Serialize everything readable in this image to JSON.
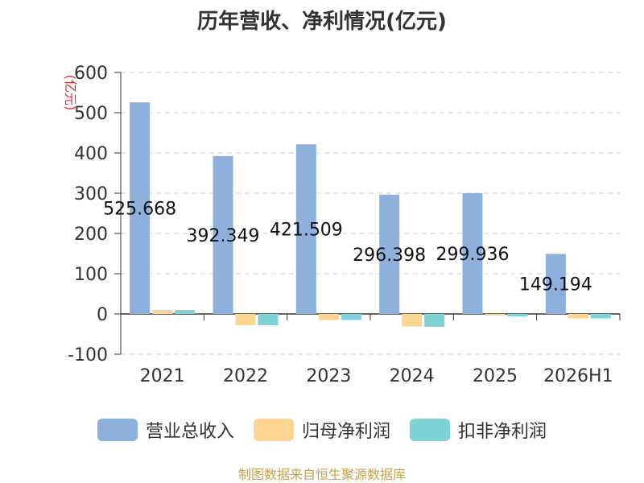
{
  "chart_data": {
    "type": "bar",
    "title": "历年营收、净利情况(亿元)",
    "ylabel": "(亿元)",
    "ylim": [
      -100,
      600
    ],
    "yticks": [
      600,
      500,
      400,
      300,
      200,
      100,
      0,
      -100
    ],
    "grid": true,
    "categories": [
      "2021",
      "2022",
      "2023",
      "2024",
      "2025",
      "2026H1"
    ],
    "series": [
      {
        "name": "营业总收入",
        "color": "#8eb0dc",
        "values": [
          525.668,
          392.349,
          421.509,
          296.398,
          299.936,
          149.194
        ]
      },
      {
        "name": "归母净利润",
        "color": "#fcd592",
        "values": [
          10,
          -28,
          -15,
          -31,
          -4,
          -11
        ]
      },
      {
        "name": "扣非净利润",
        "color": "#7fd3d7",
        "values": [
          10,
          -28,
          -15,
          -32,
          -6,
          -11
        ]
      }
    ],
    "data_labels": [
      "525.668",
      "392.349",
      "421.509",
      "296.398",
      "299.936",
      "149.194"
    ],
    "legend_position": "bottom"
  },
  "source_note": "制图数据来自恒生聚源数据库"
}
